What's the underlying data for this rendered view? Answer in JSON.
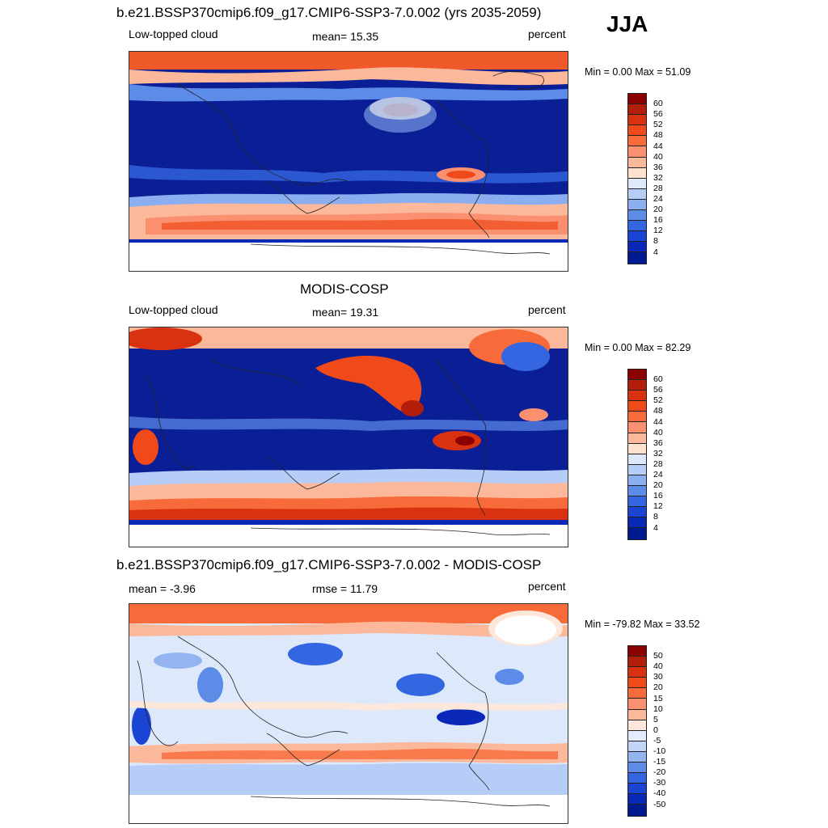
{
  "season_label": "JJA",
  "panels": [
    {
      "title": "b.e21.BSSP370cmip6.f09_g17.CMIP6-SSP3-7.0.002 (yrs 2035-2059)",
      "left_label": "Low-topped cloud",
      "center_label": "mean=  15.35",
      "right_label": "percent",
      "minmax": "Min =   0.00 Max =  51.09"
    },
    {
      "title": "MODIS-COSP",
      "left_label": "Low-topped cloud",
      "center_label": "mean=  19.31",
      "right_label": "percent",
      "minmax": "Min =   0.00 Max =  82.29"
    },
    {
      "title": "b.e21.BSSP370cmip6.f09_g17.CMIP6-SSP3-7.0.002 - MODIS-COSP",
      "left_label": "mean =  -3.96",
      "center_label": "rmse =  11.79",
      "right_label": "percent",
      "minmax": "Min = -79.82 Max =  33.52"
    }
  ],
  "colorbars": [
    {
      "colors": [
        "#8b0000",
        "#b21e0a",
        "#d93210",
        "#f04a1a",
        "#f76b3a",
        "#fb9070",
        "#fcb89a",
        "#fde2cf",
        "#dde9fb",
        "#b6cdf7",
        "#8aaef0",
        "#5c8be8",
        "#3366e0",
        "#1a44d4",
        "#0a28b8",
        "#001a90"
      ],
      "labels": [
        "60",
        "56",
        "52",
        "48",
        "44",
        "40",
        "36",
        "32",
        "28",
        "24",
        "20",
        "16",
        "12",
        "8",
        "4"
      ]
    },
    {
      "colors": [
        "#8b0000",
        "#b21e0a",
        "#d93210",
        "#f04a1a",
        "#f76b3a",
        "#fb9070",
        "#fcb89a",
        "#fde2cf",
        "#dde9fb",
        "#b6cdf7",
        "#8aaef0",
        "#5c8be8",
        "#3366e0",
        "#1a44d4",
        "#0a28b8",
        "#001a90"
      ],
      "labels": [
        "60",
        "56",
        "52",
        "48",
        "44",
        "40",
        "36",
        "32",
        "28",
        "24",
        "20",
        "16",
        "12",
        "8",
        "4"
      ]
    },
    {
      "colors": [
        "#8b0000",
        "#b21e0a",
        "#d93210",
        "#f04a1a",
        "#f76b3a",
        "#fb9070",
        "#fcb89a",
        "#fde7da",
        "#e2ecfb",
        "#c2d6f8",
        "#93b4f1",
        "#5f8ce8",
        "#3366e0",
        "#1a44d4",
        "#0a28b8",
        "#001a90"
      ],
      "labels": [
        "50",
        "40",
        "30",
        "20",
        "15",
        "10",
        "5",
        "0",
        "-5",
        "-10",
        "-15",
        "-20",
        "-30",
        "-40",
        "-50"
      ]
    }
  ]
}
